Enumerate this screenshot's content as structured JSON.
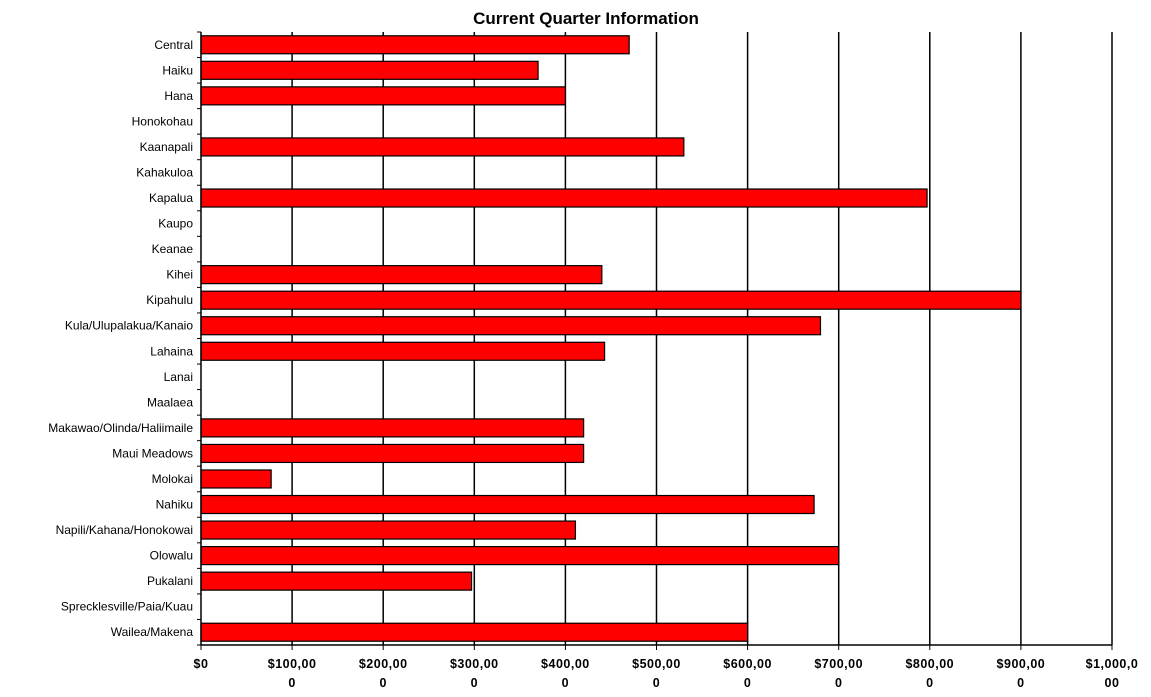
{
  "chart_data": {
    "type": "bar",
    "orientation": "horizontal",
    "title": "Current Quarter Information",
    "xlabel": "",
    "ylabel": "",
    "xlim": [
      0,
      1000000
    ],
    "grid": true,
    "legend": "none",
    "bar_color": "#ff0000",
    "categories": [
      "Central",
      "Haiku",
      "Hana",
      "Honokohau",
      "Kaanapali",
      "Kahakuloa",
      "Kapalua",
      "Kaupo",
      "Keanae",
      "Kihei",
      "Kipahulu",
      "Kula/Ulupalakua/Kanaio",
      "Lahaina",
      "Lanai",
      "Maalaea",
      "Makawao/Olinda/Haliimaile",
      "Maui Meadows",
      "Molokai",
      "Nahiku",
      "Napili/Kahana/Honokowai",
      "Olowalu",
      "Pukalani",
      "Sprecklesville/Paia/Kuau",
      "Wailea/Makena"
    ],
    "values": [
      470000,
      370000,
      400000,
      0,
      530000,
      0,
      797000,
      0,
      0,
      440000,
      900000,
      680000,
      443000,
      0,
      0,
      420000,
      420000,
      77000,
      673000,
      411000,
      700000,
      297000,
      0,
      600000
    ],
    "tick_labels": [
      [
        "$0",
        ""
      ],
      [
        "$100,00",
        "0"
      ],
      [
        "$200,00",
        "0"
      ],
      [
        "$300,00",
        "0"
      ],
      [
        "$400,00",
        "0"
      ],
      [
        "$500,00",
        "0"
      ],
      [
        "$600,00",
        "0"
      ],
      [
        "$700,00",
        "0"
      ],
      [
        "$800,00",
        "0"
      ],
      [
        "$900,00",
        "0"
      ],
      [
        "$1,000,0",
        "00"
      ]
    ]
  }
}
